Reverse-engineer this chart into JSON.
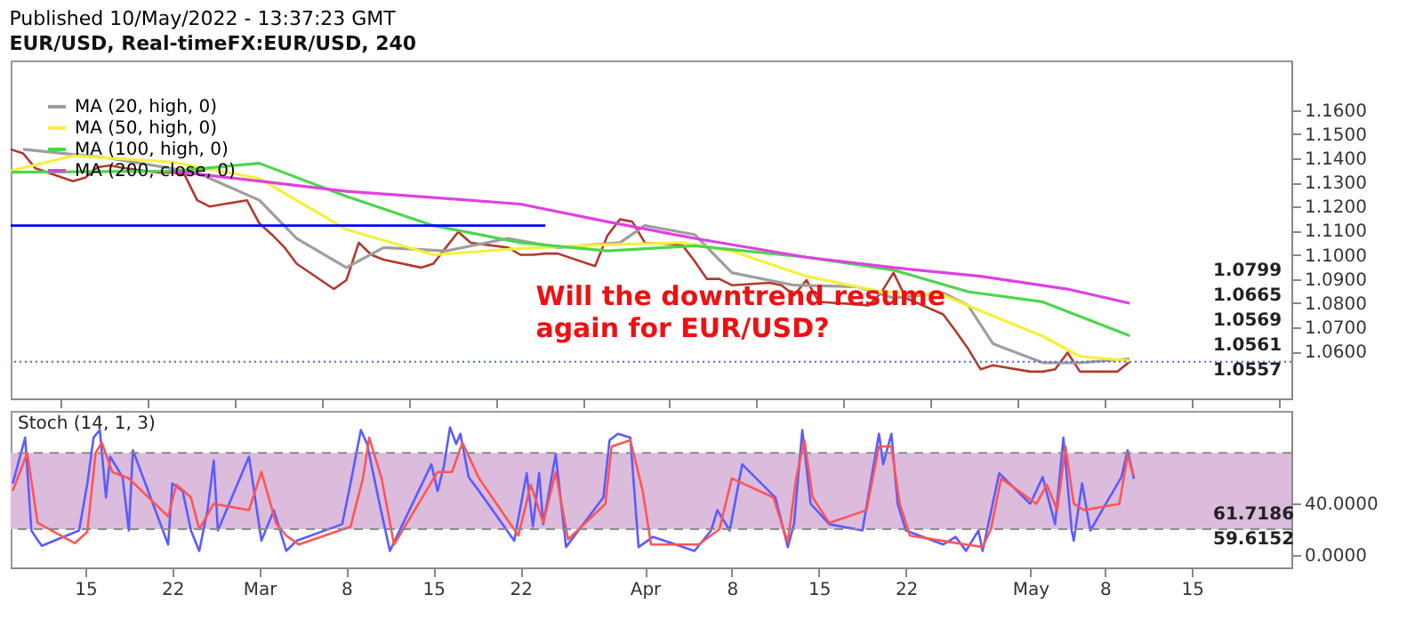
{
  "chart_data": [
    {
      "type": "line",
      "title": "Published 10/May/2022 - 13:37:23 GMT",
      "subtitle": "EUR/USD, Real-timeFX:EUR/USD, 240",
      "x": [
        "2022-02-09",
        "2022-02-10",
        "2022-02-11",
        "2022-02-14",
        "2022-02-15",
        "2022-02-16",
        "2022-02-17",
        "2022-02-18",
        "2022-02-21",
        "2022-02-22",
        "2022-02-23",
        "2022-02-24",
        "2022-02-25",
        "2022-02-28",
        "2022-03-01",
        "2022-03-02",
        "2022-03-03",
        "2022-03-04",
        "2022-03-07",
        "2022-03-08",
        "2022-03-09",
        "2022-03-10",
        "2022-03-11",
        "2022-03-14",
        "2022-03-15",
        "2022-03-16",
        "2022-03-17",
        "2022-03-18",
        "2022-03-21",
        "2022-03-22",
        "2022-03-23",
        "2022-03-24",
        "2022-03-25",
        "2022-03-28",
        "2022-03-29",
        "2022-03-30",
        "2022-03-31",
        "2022-04-01",
        "2022-04-04",
        "2022-04-05",
        "2022-04-06",
        "2022-04-07",
        "2022-04-08",
        "2022-04-11",
        "2022-04-12",
        "2022-04-13",
        "2022-04-14",
        "2022-04-15",
        "2022-04-18",
        "2022-04-19",
        "2022-04-20",
        "2022-04-21",
        "2022-04-22",
        "2022-04-25",
        "2022-04-26",
        "2022-04-27",
        "2022-04-28",
        "2022-04-29",
        "2022-05-02",
        "2022-05-03",
        "2022-05-04",
        "2022-05-05",
        "2022-05-06",
        "2022-05-09",
        "2022-05-10"
      ],
      "series": [
        {
          "color": "#b03a2e",
          "values": [
            1.1437,
            1.142,
            1.1358,
            1.1305,
            1.132,
            1.1363,
            1.137,
            1.136,
            1.134,
            1.1342,
            1.133,
            1.1226,
            1.12,
            1.1226,
            1.113,
            1.1084,
            1.1032,
            1.0963,
            1.0858,
            1.0895,
            1.105,
            1.1,
            1.098,
            1.0947,
            1.0963,
            1.103,
            1.1095,
            1.105,
            1.103,
            1.1,
            1.1,
            1.1005,
            1.1005,
            1.0953,
            1.108,
            1.1147,
            1.1137,
            1.105,
            1.1042,
            1.0974,
            1.09,
            1.09,
            1.0874,
            1.0884,
            1.0874,
            1.0832,
            1.0895,
            1.0805,
            1.0795,
            1.079,
            1.0842,
            1.0926,
            1.0821,
            1.0753,
            1.0684,
            1.0611,
            1.0526,
            1.0542,
            1.0516,
            1.0516,
            1.0526,
            1.0595,
            1.0516,
            1.0516,
            1.0557
          ]
        },
        {
          "name": "MA (20, high, 0)",
          "color": "#9e9e9e",
          "x": [
            "2022-02-10",
            "2022-02-17",
            "2022-02-24",
            "2022-03-01",
            "2022-03-04",
            "2022-03-08",
            "2022-03-11",
            "2022-03-16",
            "2022-03-21",
            "2022-03-25",
            "2022-03-30",
            "2022-04-01",
            "2022-04-05",
            "2022-04-08",
            "2022-04-13",
            "2022-04-18",
            "2022-04-21",
            "2022-04-25",
            "2022-04-27",
            "2022-04-29",
            "2022-05-03",
            "2022-05-06",
            "2022-05-10"
          ],
          "values": [
            1.1437,
            1.14,
            1.134,
            1.1226,
            1.1068,
            1.0947,
            1.103,
            1.1016,
            1.1068,
            1.103,
            1.105,
            1.1121,
            1.1084,
            1.0926,
            1.0874,
            1.0868,
            1.0821,
            1.0842,
            1.079,
            1.0632,
            1.0553,
            1.0553,
            1.0569
          ]
        },
        {
          "name": "MA (50, high, 0)",
          "color": "#f5f03c",
          "x": [
            "2022-02-09",
            "2022-02-14",
            "2022-02-22",
            "2022-03-01",
            "2022-03-08",
            "2022-03-15",
            "2022-03-22",
            "2022-03-29",
            "2022-04-04",
            "2022-04-08",
            "2022-04-14",
            "2022-04-20",
            "2022-04-25",
            "2022-04-28",
            "2022-05-03",
            "2022-05-06",
            "2022-05-10"
          ],
          "values": [
            1.1347,
            1.141,
            1.1384,
            1.1316,
            1.1105,
            1.1,
            1.1026,
            1.1042,
            1.105,
            1.1016,
            1.0911,
            1.0847,
            1.0832,
            1.0768,
            1.0663,
            1.0579,
            1.0561
          ]
        },
        {
          "name": "MA (100, high, 0)",
          "color": "#4cd64c",
          "x": [
            "2022-02-09",
            "2022-02-22",
            "2022-03-01",
            "2022-03-08",
            "2022-03-15",
            "2022-03-22",
            "2022-03-29",
            "2022-04-05",
            "2022-04-14",
            "2022-04-21",
            "2022-04-27",
            "2022-05-03",
            "2022-05-10"
          ],
          "values": [
            1.1342,
            1.1347,
            1.1379,
            1.1242,
            1.1121,
            1.105,
            1.1016,
            1.1037,
            1.099,
            1.0937,
            1.0847,
            1.0805,
            1.0665
          ]
        },
        {
          "name": "MA (200, close, 0)",
          "color": "#e040e0",
          "x": [
            "2022-02-22",
            "2022-03-01",
            "2022-03-08",
            "2022-03-15",
            "2022-03-22",
            "2022-03-29",
            "2022-04-05",
            "2022-04-14",
            "2022-04-21",
            "2022-04-28",
            "2022-05-05",
            "2022-05-10"
          ],
          "values": [
            1.1347,
            1.1305,
            1.1263,
            1.1237,
            1.121,
            1.1137,
            1.1068,
            1.099,
            1.0947,
            1.0911,
            1.0858,
            1.0799
          ]
        },
        {
          "color": "#0000ff",
          "x": [
            "2022-02-09",
            "2022-03-24"
          ],
          "values": [
            1.1121,
            1.1121
          ]
        }
      ],
      "xlim": [
        "2022-02-09",
        "2022-05-23"
      ],
      "ylim": [
        1.0405,
        1.1805
      ],
      "yticks": [
        {
          "value": 1.06,
          "label": "1.0600"
        },
        {
          "value": 1.07,
          "label": "1.0700"
        },
        {
          "value": 1.08,
          "label": "1.0800"
        },
        {
          "value": 1.09,
          "label": "1.0900"
        },
        {
          "value": 1.1,
          "label": "1.1000"
        },
        {
          "value": 1.11,
          "label": "1.1100"
        },
        {
          "value": 1.12,
          "label": "1.1200"
        },
        {
          "value": 1.13,
          "label": "1.1300"
        },
        {
          "value": 1.14,
          "label": "1.1400"
        },
        {
          "value": 1.15,
          "label": "1.1500"
        },
        {
          "value": 1.16,
          "label": "1.1600"
        }
      ],
      "ref_lines": [
        {
          "axis": "y",
          "value": 1.0557,
          "color": "#4169e1",
          "line_style": "dotted"
        }
      ],
      "annotations": [
        "Will the downtrend resume again for EUR/USD?",
        "1.0799",
        "1.0665",
        "1.0569",
        "1.0561",
        "1.0557"
      ],
      "legend": "top left",
      "tick_labels": "y"
    },
    {
      "type": "line",
      "title": "Stoch (14, 1, 3)",
      "series": [
        {
          "color": "#5b5bff",
          "x": [
            "2022-02-09T04:00",
            "2022-02-10T04:00",
            "2022-02-10T16:00",
            "2022-02-11T00:00",
            "2022-02-11T12:00",
            "2022-02-14T12:00",
            "2022-02-15T04:00",
            "2022-02-15T16:00",
            "2022-02-16T04:00",
            "2022-02-16T16:00",
            "2022-02-17T00:00",
            "2022-02-18T00:00",
            "2022-02-18T12:00",
            "2022-02-18T20:00",
            "2022-02-21T16:00",
            "2022-02-22T00:00",
            "2022-02-22T20:00",
            "2022-02-23T12:00",
            "2022-02-24T04:00",
            "2022-02-24T20:00",
            "2022-02-25T08:00",
            "2022-02-25T16:00",
            "2022-02-28T04:00",
            "2022-03-01T04:00",
            "2022-03-02T04:00",
            "2022-03-03T04:00",
            "2022-03-04T00:00",
            "2022-03-07T16:00",
            "2022-03-08T08:00",
            "2022-03-09T04:00",
            "2022-03-09T16:00",
            "2022-03-10T16:00",
            "2022-03-11T12:00",
            "2022-03-14T20:00",
            "2022-03-15T08:00",
            "2022-03-15T20:00",
            "2022-03-16T08:00",
            "2022-03-16T20:00",
            "2022-03-17T04:00",
            "2022-03-17T20:00",
            "2022-03-18T16:00",
            "2022-03-21T12:00",
            "2022-03-22T12:00",
            "2022-03-23T00:00",
            "2022-03-23T12:00",
            "2022-03-23T20:00",
            "2022-03-24T20:00",
            "2022-03-25T16:00",
            "2022-03-28T16:00",
            "2022-03-29T04:00",
            "2022-03-29T20:00",
            "2022-03-30T20:00",
            "2022-03-31T12:00",
            "2022-04-01T16:00",
            "2022-04-05T00:00",
            "2022-04-06T08:00",
            "2022-04-06T20:00",
            "2022-04-07T20:00",
            "2022-04-08T20:00",
            "2022-04-11T12:00",
            "2022-04-12T12:00",
            "2022-04-13T00:00",
            "2022-04-13T16:00",
            "2022-04-14T08:00",
            "2022-04-15T20:00",
            "2022-04-18T12:00",
            "2022-04-19T20:00",
            "2022-04-20T04:00",
            "2022-04-20T20:00",
            "2022-04-21T08:00",
            "2022-04-22T00:00",
            "2022-04-25T00:00",
            "2022-04-26T00:00",
            "2022-04-26T20:00",
            "2022-04-27T20:00",
            "2022-04-28T04:00",
            "2022-04-29T12:00",
            "2022-05-02T00:00",
            "2022-05-03T00:00",
            "2022-05-04T00:00",
            "2022-05-04T16:00",
            "2022-05-05T08:00",
            "2022-05-05T12:00",
            "2022-05-06T04:00",
            "2022-05-06T20:00",
            "2022-05-09T08:00",
            "2022-05-09T20:00",
            "2022-05-10T08:00"
          ],
          "values": [
            56,
            92,
            19,
            14,
            7,
            19,
            56,
            92,
            98,
            45,
            77,
            61,
            19,
            82,
            8,
            56,
            50,
            19,
            3,
            35,
            74,
            19,
            77,
            11,
            35,
            3,
            11,
            24,
            56,
            98,
            87,
            40,
            3,
            71,
            50,
            69,
            100,
            87,
            95,
            61,
            50,
            11,
            64,
            22,
            64,
            24,
            79,
            6,
            45,
            90,
            95,
            92,
            6,
            14,
            3,
            19,
            35,
            19,
            71,
            45,
            6,
            24,
            98,
            40,
            24,
            19,
            95,
            71,
            95,
            40,
            19,
            8,
            14,
            3,
            19,
            3,
            64,
            40,
            61,
            24,
            92,
            19,
            11,
            56,
            19,
            61,
            82,
            59.6152
          ]
        },
        {
          "color": "#ff5555",
          "x": [
            "2022-02-09T04:00",
            "2022-02-10T08:00",
            "2022-02-11T04:00",
            "2022-02-14T04:00",
            "2022-02-15T04:00",
            "2022-02-15T20:00",
            "2022-02-16T08:00",
            "2022-02-17T04:00",
            "2022-02-18T12:00",
            "2022-02-21T16:00",
            "2022-02-22T08:00",
            "2022-02-23T12:00",
            "2022-02-24T04:00",
            "2022-02-25T08:00",
            "2022-02-28T04:00",
            "2022-03-01T04:00",
            "2022-03-02T08:00",
            "2022-03-03T04:00",
            "2022-03-04T04:00",
            "2022-03-08T08:00",
            "2022-03-09T08:00",
            "2022-03-09T20:00",
            "2022-03-10T20:00",
            "2022-03-11T20:00",
            "2022-03-15T08:00",
            "2022-03-16T12:00",
            "2022-03-17T08:00",
            "2022-03-18T16:00",
            "2022-03-21T20:00",
            "2022-03-22T20:00",
            "2022-03-23T20:00",
            "2022-03-24T20:00",
            "2022-03-25T20:00",
            "2022-03-28T20:00",
            "2022-03-29T08:00",
            "2022-03-30T20:00",
            "2022-03-31T20:00",
            "2022-04-01T12:00",
            "2022-04-05T08:00",
            "2022-04-07T00:00",
            "2022-04-08T00:00",
            "2022-04-11T08:00",
            "2022-04-12T12:00",
            "2022-04-13T04:00",
            "2022-04-13T20:00",
            "2022-04-14T12:00",
            "2022-04-15T20:00",
            "2022-04-18T20:00",
            "2022-04-19T20:00",
            "2022-04-20T20:00",
            "2022-04-21T12:00",
            "2022-04-22T08:00",
            "2022-04-25T12:00",
            "2022-04-26T20:00",
            "2022-04-28T04:00",
            "2022-04-28T20:00",
            "2022-04-29T16:00",
            "2022-05-02T12:00",
            "2022-05-03T08:00",
            "2022-05-04T04:00",
            "2022-05-04T20:00",
            "2022-05-05T12:00",
            "2022-05-06T08:00",
            "2022-05-09T04:00",
            "2022-05-09T20:00",
            "2022-05-10T08:00"
          ],
          "values": [
            50,
            80,
            25,
            9,
            18,
            80,
            88,
            65,
            60,
            30,
            55,
            45,
            20,
            40,
            35,
            65,
            25,
            15,
            8,
            22,
            60,
            92,
            60,
            8,
            65,
            65,
            88,
            60,
            15,
            55,
            25,
            65,
            12,
            40,
            85,
            90,
            50,
            8,
            8,
            20,
            60,
            45,
            10,
            60,
            90,
            45,
            25,
            35,
            85,
            85,
            40,
            15,
            10,
            8,
            6,
            20,
            60,
            40,
            55,
            35,
            85,
            40,
            35,
            40,
            78,
            61.7186
          ]
        }
      ],
      "xlim": [
        "2022-02-09",
        "2022-05-23"
      ],
      "xticks": [
        {
          "value": "2022-02-15",
          "label": "15"
        },
        {
          "value": "2022-02-22",
          "label": "22"
        },
        {
          "value": "2022-03-01",
          "label": "Mar"
        },
        {
          "value": "2022-03-08",
          "label": "8"
        },
        {
          "value": "2022-03-15",
          "label": "15"
        },
        {
          "value": "2022-03-22",
          "label": "22"
        },
        {
          "value": "2022-04-01",
          "label": "Apr"
        },
        {
          "value": "2022-04-08",
          "label": "8"
        },
        {
          "value": "2022-04-15",
          "label": "15"
        },
        {
          "value": "2022-04-22",
          "label": "22"
        },
        {
          "value": "2022-05-02",
          "label": "May"
        },
        {
          "value": "2022-05-08",
          "label": "8"
        },
        {
          "value": "2022-05-15",
          "label": "15"
        }
      ],
      "ylim": [
        -10,
        113
      ],
      "yticks": [
        {
          "value": 0,
          "label": "0.0000"
        },
        {
          "value": 40,
          "label": "40.0000"
        }
      ],
      "bands": [
        {
          "axis": "y",
          "from": 20,
          "to": 80,
          "color": "#dcbcdc"
        }
      ],
      "ref_lines": [
        {
          "axis": "y",
          "value": 20,
          "color": "#8a8a8a",
          "line_style": "dashed"
        },
        {
          "axis": "y",
          "value": 80,
          "color": "#8a8a8a",
          "line_style": "dashed"
        }
      ],
      "annotations": [
        "61.7186",
        "59.6152"
      ]
    }
  ]
}
